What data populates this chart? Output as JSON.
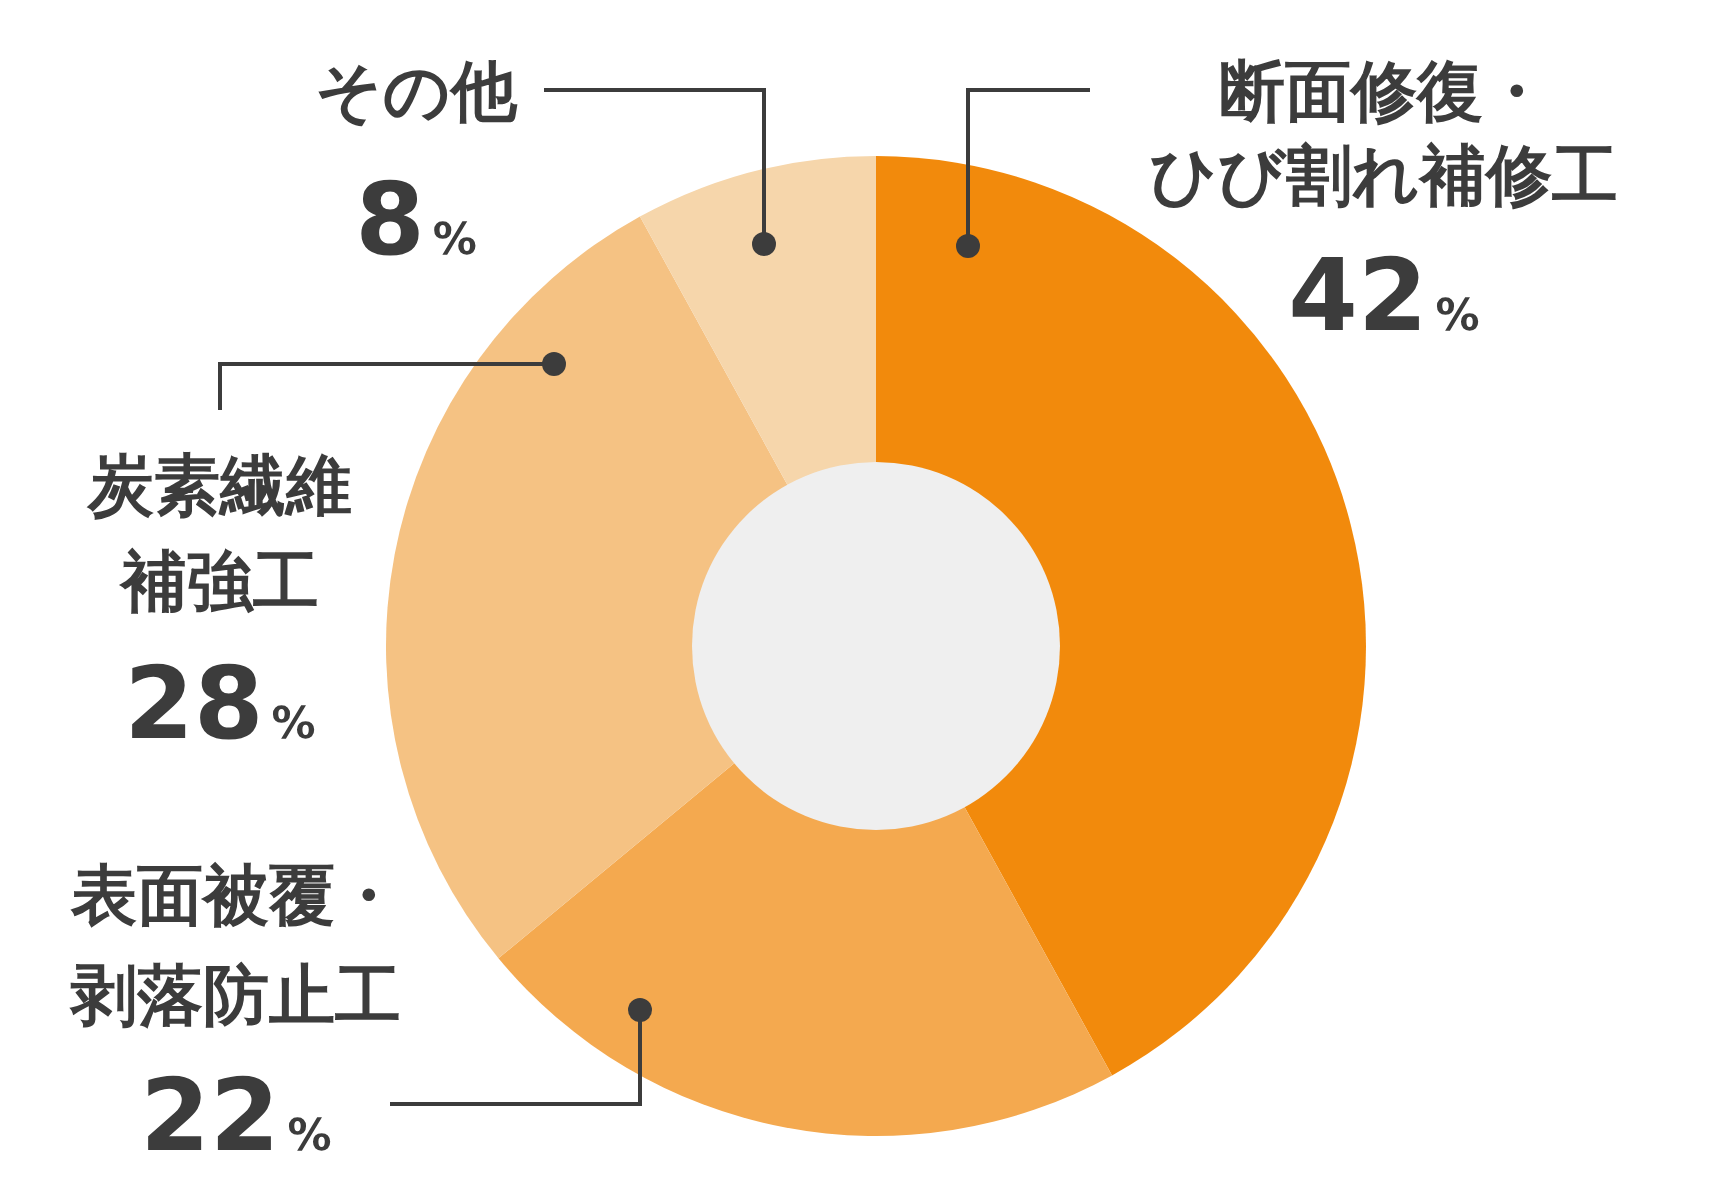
{
  "chart_data": {
    "type": "donut",
    "categories": [
      "断面修復・ひび割れ補修工",
      "表面被覆・剥落防止工",
      "炭素繊維補強工",
      "その他"
    ],
    "values": [
      42,
      22,
      28,
      8
    ],
    "colors": [
      "#f28a0c",
      "#f4a94f",
      "#f5c283",
      "#f6d6ab"
    ],
    "value_labels": [
      "42%",
      "22%",
      "28%",
      "8%"
    ]
  }
}
